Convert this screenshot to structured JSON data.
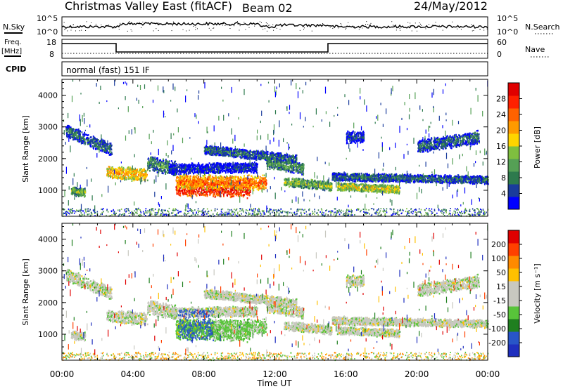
{
  "header": {
    "station": "Christmas Valley East (fitACF)",
    "beam": "Beam 02",
    "date": "24/May/2012"
  },
  "panels": {
    "nsky": {
      "left_label": "N.Sky",
      "right_label": "N.Search",
      "left_ticks": [
        "10^5",
        "10^0"
      ],
      "right_ticks": [
        "10^5",
        "10^0"
      ]
    },
    "freq": {
      "left_label_1": "Freq.",
      "left_label_2": "[MHz]",
      "right_label": "Nave",
      "left_ticks": [
        "18",
        "8"
      ],
      "right_ticks": [
        "60",
        "0"
      ]
    },
    "cpid": {
      "label": "CPID",
      "mode_text": "normal (fast) 151 IF"
    }
  },
  "colors": {
    "power_scale": [
      "#0000ff",
      "#1a3c9c",
      "#2d7a4d",
      "#55a055",
      "#7fbf3f",
      "#ffd400",
      "#ff9a00",
      "#ff6200",
      "#ff2000",
      "#e00000"
    ],
    "velocity_scale": [
      "#1f2fbf",
      "#2855c8",
      "#1f7f1f",
      "#58c43a",
      "#c8c8c0",
      "#c8c8c0",
      "#ffc000",
      "#ff8a00",
      "#ff4000",
      "#e00000"
    ]
  },
  "chart_data": [
    {
      "type": "heatmap",
      "title": "Power",
      "ylabel": "Slant Range [km]",
      "xlabel": "",
      "ylim": [
        180,
        4500
      ],
      "xlim": [
        "00:00",
        "00:00"
      ],
      "yticks": [
        "1000",
        "2000",
        "3000",
        "4000"
      ],
      "xticks": [
        "00:00",
        "04:00",
        "08:00",
        "12:00",
        "16:00",
        "20:00",
        "00:00"
      ],
      "colorbar": {
        "label": "Power [dB]",
        "ticks": [
          "4",
          "8",
          "12",
          "16",
          "20",
          "24",
          "28"
        ],
        "range": [
          0,
          30
        ]
      }
    },
    {
      "type": "heatmap",
      "title": "Velocity",
      "ylabel": "Slant Range [km]",
      "xlabel": "Time UT",
      "ylim": [
        180,
        4500
      ],
      "xlim": [
        "00:00",
        "00:00"
      ],
      "yticks": [
        "1000",
        "2000",
        "3000",
        "4000"
      ],
      "xticks": [
        "00:00",
        "04:00",
        "08:00",
        "12:00",
        "16:00",
        "20:00",
        "00:00"
      ],
      "colorbar": {
        "label": "Velocity [m s⁻¹]",
        "ticks": [
          "200",
          "100",
          "50",
          "15",
          "-15",
          "-50",
          "-100",
          "-200"
        ],
        "range": [
          -250,
          250
        ]
      }
    }
  ]
}
